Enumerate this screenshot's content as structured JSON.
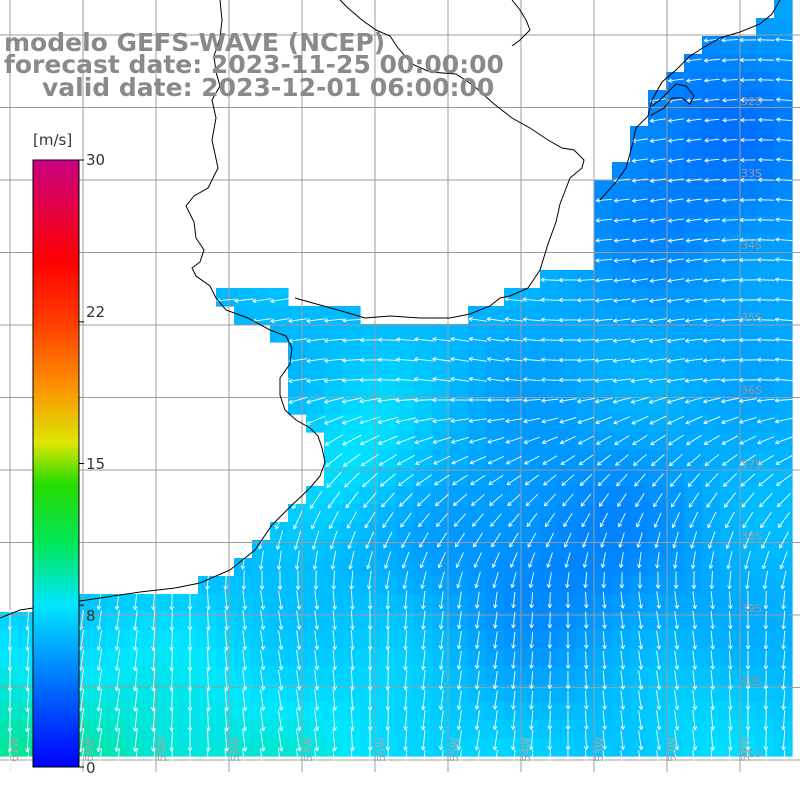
{
  "title": {
    "model": "modelo GEFS-WAVE (NCEP)",
    "forecast": "forecast date: 2023-11-25 00:00:00",
    "valid": "valid date: 2023-12-01 06:00:00"
  },
  "colorbar": {
    "unit": "[m/s]",
    "min": 0,
    "max": 30,
    "ticks": [
      "30",
      "22",
      "15",
      "8",
      "0"
    ],
    "tick_values": [
      30,
      22,
      15,
      8,
      0
    ]
  },
  "lat_labels": [
    "32S",
    "33S",
    "34S",
    "35S",
    "36S",
    "37S",
    "38S",
    "39S",
    "40S",
    "41S"
  ],
  "lon_labels": [
    "61W",
    "60W",
    "59W",
    "58W",
    "57W",
    "56W",
    "55W",
    "54W",
    "53W",
    "52W",
    "51W"
  ],
  "colors": {
    "land": "#ffffff",
    "grid": "#a0a0a0",
    "coast": "#000000",
    "arrow": "#ffffff",
    "title": "#8a8a8a"
  }
}
